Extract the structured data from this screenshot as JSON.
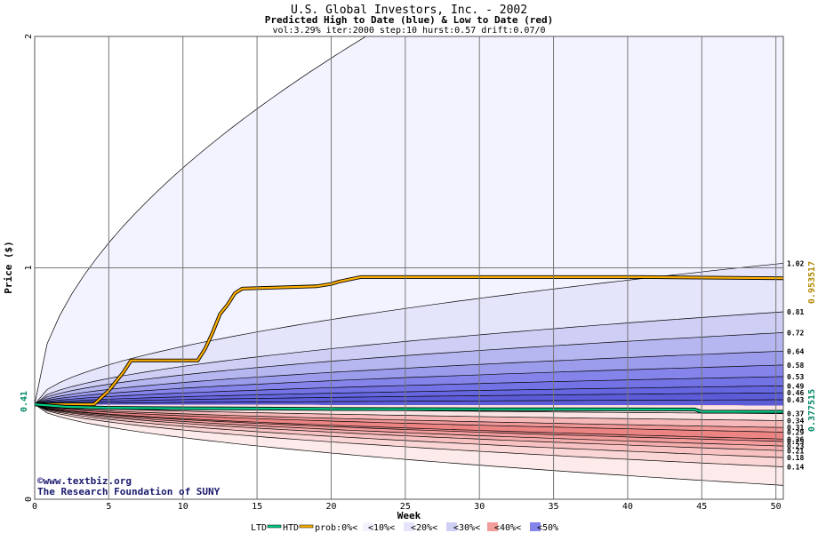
{
  "chart_data": {
    "type": "area",
    "title": "U.S. Global Investors, Inc. - 2002",
    "subtitle": "Predicted High to Date (blue) &  Low to Date (red)",
    "params": "vol:3.29% iter:2000 step:10 hurst:0.57 drift:0.07/0",
    "xlabel": "Week",
    "ylabel": "Price ($)",
    "xlim": [
      0,
      50.5
    ],
    "ylim": [
      0,
      2
    ],
    "x_ticks": [
      0,
      5,
      10,
      15,
      20,
      25,
      30,
      35,
      40,
      45,
      50
    ],
    "y_ticks": [
      0,
      1,
      2
    ],
    "start_price": "0.41",
    "grid": true,
    "credit_line1": "©www.textbiz.org",
    "credit_line2": "The Research Foundation of SUNY",
    "htd_final": "0.953517",
    "ltd_final": "0.377515",
    "upper_band_end_labels": [
      "1.02",
      "0.81",
      "0.72",
      "0.64",
      "0.58",
      "0.53",
      "0.49",
      "0.46",
      "0.43"
    ],
    "upper_band_end_values": [
      1.02,
      0.81,
      0.72,
      0.64,
      0.58,
      0.53,
      0.49,
      0.46,
      0.43
    ],
    "lower_band_end_labels": [
      "0.37",
      "0.34",
      "0.31",
      "0.29",
      "0.26",
      "0.25",
      "0.23",
      "0.21",
      "0.18",
      "0.14"
    ],
    "lower_band_end_values": [
      0.37,
      0.34,
      0.31,
      0.29,
      0.26,
      0.25,
      0.23,
      0.21,
      0.18,
      0.14
    ],
    "outer_upper_end": 2.9,
    "outer_lower_end": 0.06,
    "series": [
      {
        "name": "HTD",
        "color": "#ffb000",
        "x": [
          0,
          4,
          4.5,
          5,
          5.5,
          6,
          6.5,
          11,
          11.5,
          12,
          12.5,
          13,
          13.5,
          14,
          19,
          20,
          20.5,
          22,
          41,
          50.5
        ],
        "values": [
          0.41,
          0.41,
          0.44,
          0.47,
          0.51,
          0.55,
          0.6,
          0.6,
          0.65,
          0.72,
          0.8,
          0.84,
          0.89,
          0.91,
          0.92,
          0.93,
          0.94,
          0.96,
          0.96,
          0.955
        ]
      },
      {
        "name": "LTD",
        "color": "#00cc88",
        "x": [
          0,
          2,
          5,
          10,
          15,
          20,
          30,
          44.5,
          45,
          50.5
        ],
        "values": [
          0.41,
          0.4,
          0.395,
          0.393,
          0.392,
          0.39,
          0.389,
          0.388,
          0.378,
          0.378
        ]
      }
    ]
  },
  "legend": {
    "ltd": "LTD",
    "htd": "HTD",
    "prob": "prob:0%<",
    "b10": "<10%<",
    "b20": "<20%<",
    "b30": "<30%<",
    "b40": "<40%<",
    "b50": "<50%",
    "ltd_color": "#00cc88",
    "htd_color": "#ffb000"
  },
  "colors": {
    "blue_bands": [
      "#f3f3ff",
      "#e4e4fb",
      "#cfcff6",
      "#b6b6f0",
      "#9c9cec",
      "#8484ea",
      "#7373e6",
      "#6666e0",
      "#5c5cd8"
    ],
    "red_bands": [
      "#fdeaea",
      "#fbd6d6",
      "#f8c2c2",
      "#f5aeae",
      "#f29c9c",
      "#ee8c8c",
      "#ec8484",
      "#f09898",
      "#f6b8b8",
      "#fce4e4"
    ],
    "grid": "#777777",
    "axis_text": "#000000",
    "htd_value": "#b08800",
    "ltd_value": "#008866"
  }
}
